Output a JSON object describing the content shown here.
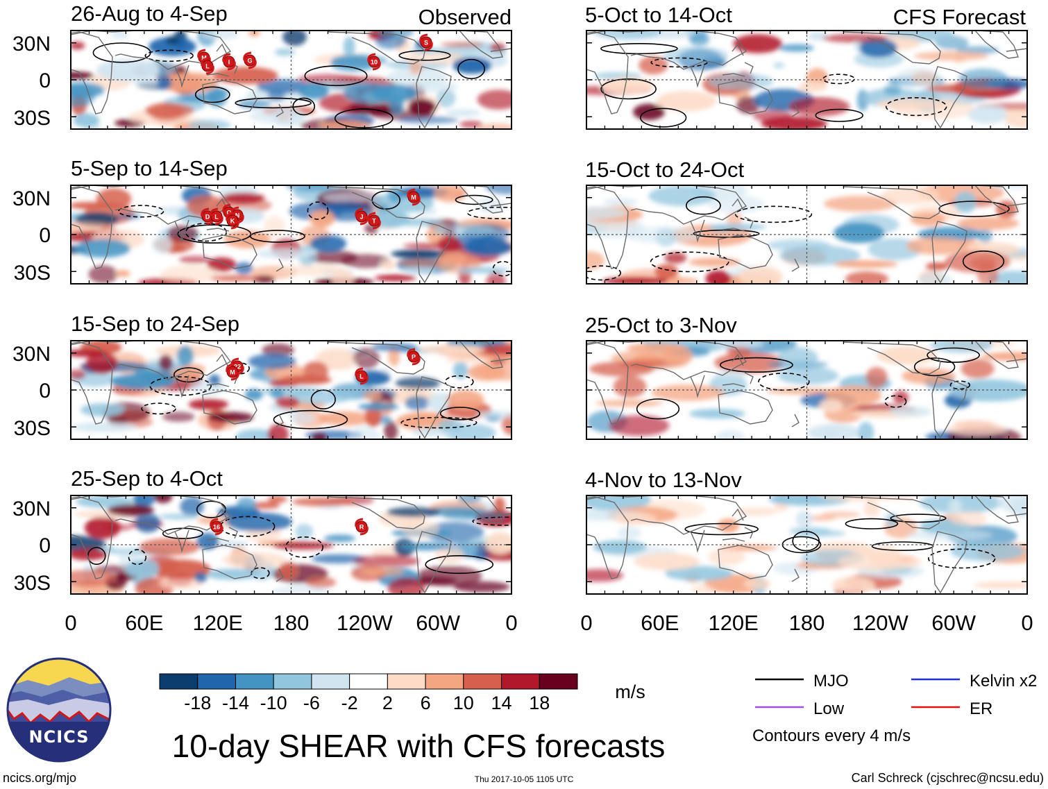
{
  "header": {
    "observed_label": "Observed",
    "forecast_label": "CFS Forecast"
  },
  "panels": {
    "observed": [
      {
        "title": "26-Aug to 4-Sep",
        "storms": [
          "M",
          "G",
          "S",
          "L",
          "10",
          "I"
        ]
      },
      {
        "title": "5-Sep to 14-Sep",
        "storms": [
          "D",
          "T",
          "O",
          "N",
          "M",
          "K",
          "J",
          "L"
        ]
      },
      {
        "title": "15-Sep to 24-Sep",
        "storms": [
          "22",
          "P",
          "M",
          "L"
        ]
      },
      {
        "title": "25-Sep to 4-Oct",
        "storms": [
          "R",
          "16"
        ]
      }
    ],
    "forecast": [
      {
        "title": "5-Oct to 14-Oct"
      },
      {
        "title": "15-Oct to 24-Oct"
      },
      {
        "title": "25-Oct to 3-Nov"
      },
      {
        "title": "4-Nov to 13-Nov"
      }
    ]
  },
  "axes": {
    "lat_labels": [
      "30N",
      "0",
      "30S"
    ],
    "lon_labels": [
      "0",
      "60E",
      "120E",
      "180",
      "120W",
      "60W",
      "0"
    ]
  },
  "colorbar": {
    "ticks": [
      "-18",
      "-14",
      "-10",
      "-6",
      "-2",
      "2",
      "6",
      "10",
      "14",
      "18"
    ],
    "colors": [
      "#0b3d6e",
      "#2166ac",
      "#4393c3",
      "#92c5de",
      "#d1e5f0",
      "#ffffff",
      "#fddbc7",
      "#f4a582",
      "#d6604d",
      "#b2182b",
      "#67001f"
    ],
    "units": "m/s"
  },
  "legend": {
    "items": [
      {
        "label": "MJO",
        "color": "#000000"
      },
      {
        "label": "Kelvin x2",
        "color": "#1f2fd6"
      },
      {
        "label": "Low",
        "color": "#a050e0"
      },
      {
        "label": "ER",
        "color": "#e01010"
      }
    ],
    "note": "Contours every 4 m/s"
  },
  "logo": {
    "text": "NCICS"
  },
  "main_title": "10-day SHEAR with CFS forecasts",
  "footer": {
    "url": "ncics.org/mjo",
    "timestamp": "Thu 2017-10-05 1105 UTC",
    "credit": "Carl Schreck (cjschrec@ncsu.edu)"
  }
}
